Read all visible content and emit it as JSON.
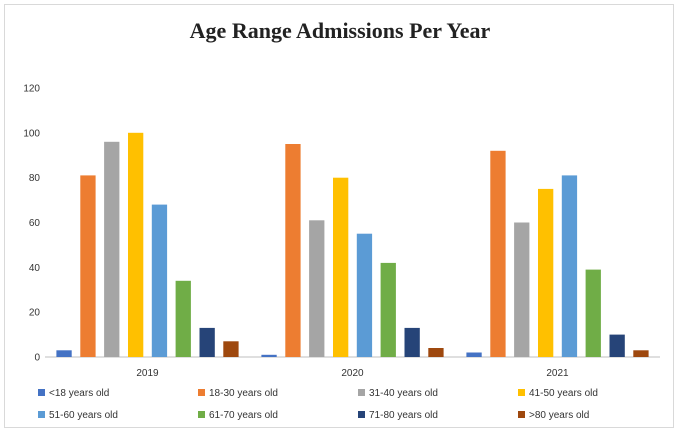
{
  "chart_data": {
    "type": "bar",
    "title": "Age Range Admissions Per Year",
    "xlabel": "",
    "ylabel": "",
    "categories": [
      "2019",
      "2020",
      "2021"
    ],
    "ylim": [
      0,
      120
    ],
    "yticks": [
      0,
      20,
      40,
      60,
      80,
      100,
      120
    ],
    "grid": false,
    "legend_position": "bottom",
    "series": [
      {
        "name": "<18 years old",
        "color": "#4472c4",
        "values": [
          3,
          1,
          2
        ]
      },
      {
        "name": "18-30 years old",
        "color": "#ed7d31",
        "values": [
          81,
          95,
          92
        ]
      },
      {
        "name": "31-40 years old",
        "color": "#a5a5a5",
        "values": [
          96,
          61,
          60
        ]
      },
      {
        "name": "41-50 years old",
        "color": "#ffc000",
        "values": [
          100,
          80,
          75
        ]
      },
      {
        "name": "51-60 years old",
        "color": "#5b9bd5",
        "values": [
          68,
          55,
          81
        ]
      },
      {
        "name": "61-70 years old",
        "color": "#70ad47",
        "values": [
          34,
          42,
          39
        ]
      },
      {
        "name": "71-80 years old",
        "color": "#264478",
        "values": [
          13,
          13,
          10
        ]
      },
      {
        "name": ">80 years old",
        "color": "#9e480e",
        "values": [
          7,
          4,
          3
        ]
      }
    ]
  }
}
